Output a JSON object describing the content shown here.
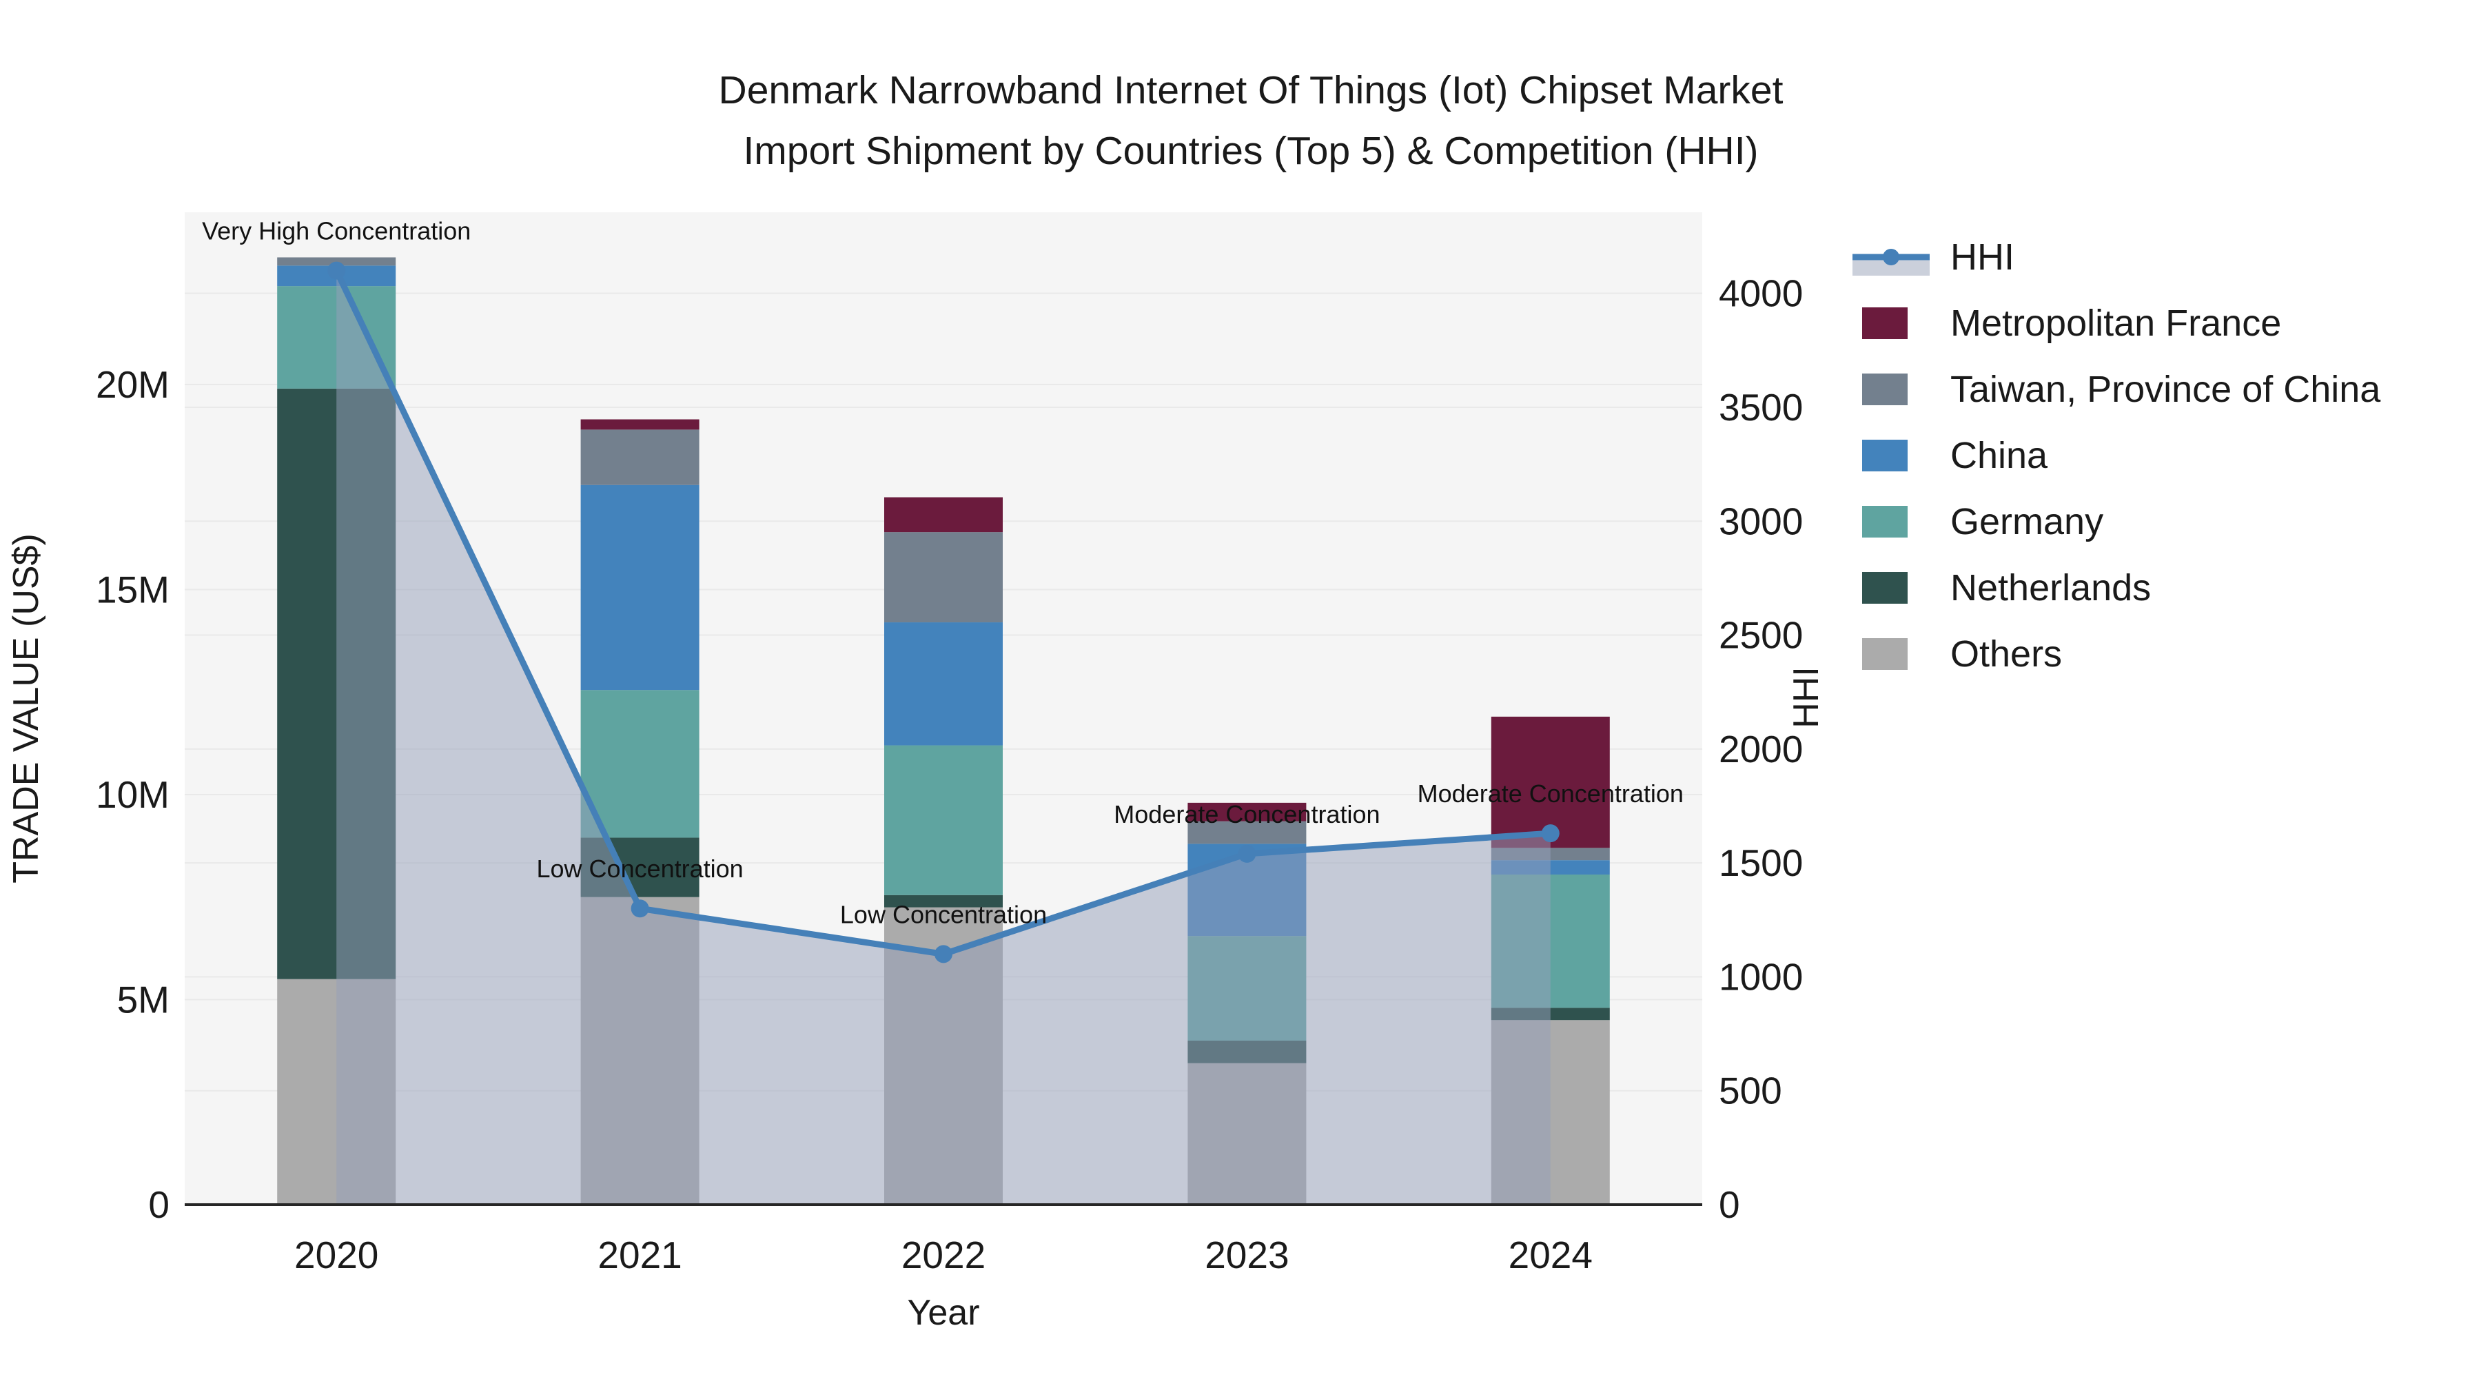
{
  "figure": {
    "title_line1": "Denmark Narrowband Internet Of Things (Iot) Chipset Market",
    "title_line2": "Import Shipment by Countries (Top 5) & Competition (HHI)",
    "xlabel": "Year",
    "ylabel_left": "TRADE VALUE (US$)",
    "ylabel_right": "HHI"
  },
  "chart_data": {
    "type": "bar",
    "subtype": "stacked-bars-with-hhi-line-and-area",
    "title": "Denmark Narrowband Internet Of Things (Iot) Chipset Market Import Shipment by Countries (Top 5) & Competition (HHI)",
    "xlabel": "Year",
    "ylabel_left": "TRADE VALUE (US$)",
    "ylabel_right": "HHI",
    "categories": [
      "2020",
      "2021",
      "2022",
      "2023",
      "2024"
    ],
    "series": [
      {
        "name": "Metropolitan France",
        "color": "#6B1B3D",
        "values": [
          0,
          250000,
          850000,
          450000,
          3200000
        ]
      },
      {
        "name": "Taiwan, Province of China",
        "color": "#73808E",
        "values": [
          200000,
          1350000,
          2200000,
          550000,
          300000
        ]
      },
      {
        "name": "China",
        "color": "#4383BC",
        "values": [
          500000,
          5000000,
          3000000,
          2250000,
          350000
        ]
      },
      {
        "name": "Germany",
        "color": "#5FA4A0",
        "values": [
          2500000,
          3600000,
          3650000,
          2550000,
          3250000
        ]
      },
      {
        "name": "Netherlands",
        "color": "#2F524E",
        "values": [
          14400000,
          1450000,
          300000,
          550000,
          300000
        ]
      },
      {
        "name": "Others",
        "color": "#ABABAB",
        "values": [
          5500000,
          7500000,
          7250000,
          3450000,
          4500000
        ]
      }
    ],
    "stack_order": [
      "Others",
      "Netherlands",
      "Germany",
      "China",
      "Taiwan, Province of China",
      "Metropolitan France"
    ],
    "line_series": {
      "name": "HHI",
      "color": "#4580B8",
      "fill_color": "rgba(150,160,186,0.5)",
      "legend_band_color": "#CBD0DB",
      "marker": "circle",
      "values": [
        4100,
        1300,
        1100,
        1540,
        1630
      ]
    },
    "annotations": [
      "Very High Concentration",
      "Low Concentration",
      "Low Concentration",
      "Moderate Concentration",
      "Moderate Concentration"
    ],
    "left_axis": {
      "range": [
        0,
        24200000
      ],
      "ticks": [
        0,
        5000000,
        10000000,
        15000000,
        20000000
      ],
      "tick_labels": [
        "0",
        "5M",
        "10M",
        "15M",
        "20M"
      ]
    },
    "right_axis": {
      "range": [
        0,
        4356
      ],
      "ticks": [
        0,
        500,
        1000,
        1500,
        2000,
        2500,
        3000,
        3500,
        4000
      ],
      "tick_labels": [
        "0",
        "500",
        "1000",
        "1500",
        "2000",
        "2500",
        "3000",
        "3500",
        "4000"
      ]
    },
    "legend_entries": [
      "HHI",
      "Metropolitan France",
      "Taiwan, Province of China",
      "China",
      "Germany",
      "Netherlands",
      "Others"
    ],
    "legend_position": "right",
    "grid": true,
    "colors": {
      "plot_bg": "#F5F5F5",
      "grid_line": "#E9E9E9",
      "bottom_spine": "#262626",
      "text": "#1a1a1a"
    }
  }
}
